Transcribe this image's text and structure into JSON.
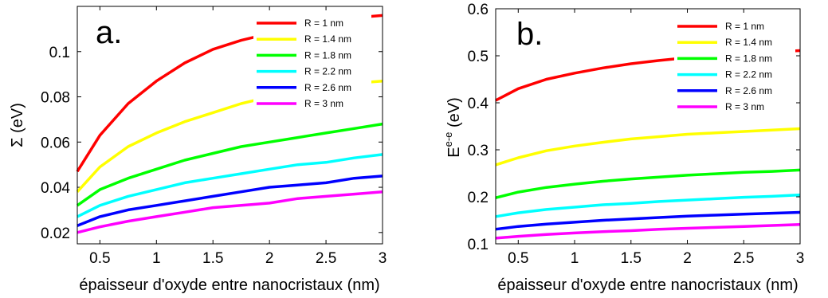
{
  "chart_data": [
    {
      "type": "line",
      "panel_label": "a.",
      "xlabel": "épaisseur d'oxyde entre nanocristaux (nm)",
      "ylabel": "Σ (eV)",
      "xlim": [
        0.3,
        3
      ],
      "ylim": [
        0.015,
        0.12
      ],
      "xticks": [
        0.5,
        1,
        1.5,
        2,
        2.5,
        3
      ],
      "xtick_labels": [
        "0.5",
        "1",
        "1.5",
        "2",
        "2.5",
        "3"
      ],
      "yticks": [
        0.02,
        0.04,
        0.06,
        0.08,
        0.1
      ],
      "ytick_labels": [
        "0.02",
        "0.04",
        "0.06",
        "0.08",
        "0.1"
      ],
      "legend_position": "top-right",
      "x": [
        0.3,
        0.5,
        0.75,
        1,
        1.25,
        1.5,
        1.75,
        2,
        2.25,
        2.5,
        2.75,
        3
      ],
      "series": [
        {
          "name": "R = 1 nm",
          "color": "#ff0000",
          "values": [
            0.047,
            0.063,
            0.077,
            0.087,
            0.095,
            0.101,
            0.105,
            0.108,
            0.111,
            0.113,
            0.115,
            0.116
          ]
        },
        {
          "name": "R = 1.4 nm",
          "color": "#ffff00",
          "values": [
            0.038,
            0.049,
            0.058,
            0.064,
            0.069,
            0.073,
            0.077,
            0.08,
            0.082,
            0.084,
            0.086,
            0.087
          ]
        },
        {
          "name": "R = 1.8 nm",
          "color": "#00ff00",
          "values": [
            0.032,
            0.039,
            0.044,
            0.048,
            0.052,
            0.055,
            0.058,
            0.06,
            0.062,
            0.064,
            0.066,
            0.068
          ]
        },
        {
          "name": "R = 2.2 nm",
          "color": "#00ffff",
          "values": [
            0.027,
            0.032,
            0.036,
            0.039,
            0.042,
            0.044,
            0.046,
            0.048,
            0.05,
            0.051,
            0.053,
            0.0545
          ]
        },
        {
          "name": "R = 2.6 nm",
          "color": "#0000ff",
          "values": [
            0.023,
            0.027,
            0.03,
            0.032,
            0.034,
            0.036,
            0.038,
            0.04,
            0.041,
            0.042,
            0.044,
            0.045
          ]
        },
        {
          "name": "R = 3 nm",
          "color": "#ff00ff",
          "values": [
            0.02,
            0.0225,
            0.025,
            0.027,
            0.029,
            0.031,
            0.032,
            0.033,
            0.035,
            0.036,
            0.037,
            0.038
          ]
        }
      ]
    },
    {
      "type": "line",
      "panel_label": "b.",
      "xlabel": "épaisseur d'oxyde entre nanocristaux (nm)",
      "ylabel_main": "E",
      "ylabel_sup": "e-e",
      "ylabel_suffix": " (eV)",
      "xlim": [
        0.3,
        3
      ],
      "ylim": [
        0.1,
        0.6
      ],
      "xticks": [
        0.5,
        1,
        1.5,
        2,
        2.5,
        3
      ],
      "xtick_labels": [
        "0.5",
        "1",
        "1.5",
        "2",
        "2.5",
        "3"
      ],
      "yticks": [
        0.1,
        0.2,
        0.3,
        0.4,
        0.5,
        0.6
      ],
      "ytick_labels": [
        "0.1",
        "0.2",
        "0.3",
        "0.4",
        "0.5",
        "0.6"
      ],
      "legend_position": "top-right",
      "x": [
        0.3,
        0.5,
        0.75,
        1,
        1.25,
        1.5,
        1.75,
        2,
        2.25,
        2.5,
        2.75,
        3
      ],
      "series": [
        {
          "name": "R = 1 nm",
          "color": "#ff0000",
          "values": [
            0.405,
            0.43,
            0.45,
            0.463,
            0.474,
            0.483,
            0.49,
            0.496,
            0.5,
            0.504,
            0.508,
            0.511
          ]
        },
        {
          "name": "R = 1.4 nm",
          "color": "#ffff00",
          "values": [
            0.268,
            0.283,
            0.298,
            0.308,
            0.316,
            0.323,
            0.328,
            0.333,
            0.336,
            0.339,
            0.342,
            0.345
          ]
        },
        {
          "name": "R = 1.8 nm",
          "color": "#00ff00",
          "values": [
            0.198,
            0.21,
            0.22,
            0.227,
            0.233,
            0.238,
            0.242,
            0.246,
            0.249,
            0.252,
            0.254,
            0.257
          ]
        },
        {
          "name": "R = 2.2 nm",
          "color": "#00ffff",
          "values": [
            0.158,
            0.166,
            0.173,
            0.178,
            0.183,
            0.186,
            0.19,
            0.193,
            0.196,
            0.199,
            0.201,
            0.204
          ]
        },
        {
          "name": "R = 2.6 nm",
          "color": "#0000ff",
          "values": [
            0.131,
            0.137,
            0.142,
            0.146,
            0.15,
            0.153,
            0.156,
            0.159,
            0.161,
            0.163,
            0.165,
            0.167
          ]
        },
        {
          "name": "R = 3 nm",
          "color": "#ff00ff",
          "values": [
            0.112,
            0.116,
            0.12,
            0.123,
            0.126,
            0.128,
            0.131,
            0.133,
            0.135,
            0.137,
            0.139,
            0.141
          ]
        }
      ]
    }
  ]
}
